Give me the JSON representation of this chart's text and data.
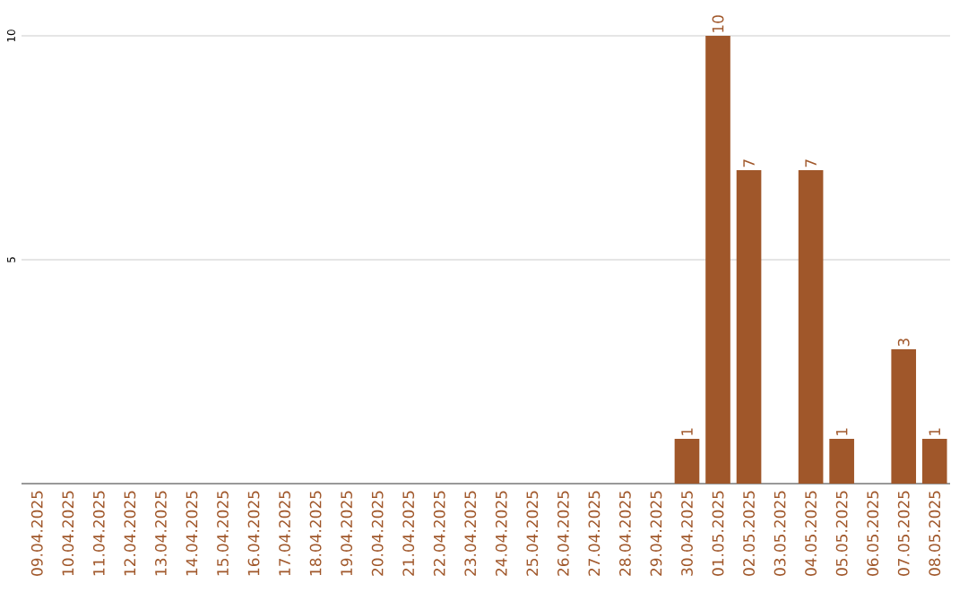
{
  "chart_data": {
    "type": "bar",
    "categories": [
      "09.04.2025",
      "10.04.2025",
      "11.04.2025",
      "12.04.2025",
      "13.04.2025",
      "14.04.2025",
      "15.04.2025",
      "16.04.2025",
      "17.04.2025",
      "18.04.2025",
      "19.04.2025",
      "20.04.2025",
      "21.04.2025",
      "22.04.2025",
      "23.04.2025",
      "24.04.2025",
      "25.04.2025",
      "26.04.2025",
      "27.04.2025",
      "28.04.2025",
      "29.04.2025",
      "30.04.2025",
      "01.05.2025",
      "02.05.2025",
      "03.05.2025",
      "04.05.2025",
      "05.05.2025",
      "06.05.2025",
      "07.05.2025",
      "08.05.2025"
    ],
    "values": [
      0,
      0,
      0,
      0,
      0,
      0,
      0,
      0,
      0,
      0,
      0,
      0,
      0,
      0,
      0,
      0,
      0,
      0,
      0,
      0,
      0,
      1,
      10,
      7,
      0,
      7,
      1,
      0,
      3,
      1
    ],
    "value_labels": [
      null,
      null,
      null,
      null,
      null,
      null,
      null,
      null,
      null,
      null,
      null,
      null,
      null,
      null,
      null,
      null,
      null,
      null,
      null,
      null,
      null,
      "1",
      "10",
      "7",
      null,
      "7",
      "1",
      null,
      "3",
      "1"
    ],
    "color": "#a0572a",
    "ylim": [
      0,
      10
    ],
    "yticks": [
      5,
      10
    ],
    "grid": "y"
  }
}
